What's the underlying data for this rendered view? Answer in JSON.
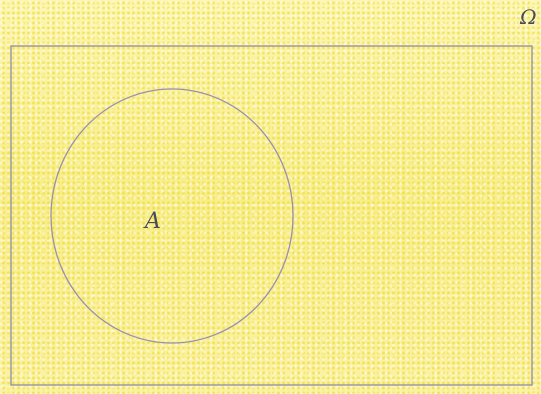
{
  "diagram": {
    "universe_label": "Ω",
    "set_label": "A",
    "colors": {
      "background": "#fbf3a0",
      "outline": "#8f8aa6",
      "text": "#4a4a58"
    }
  }
}
